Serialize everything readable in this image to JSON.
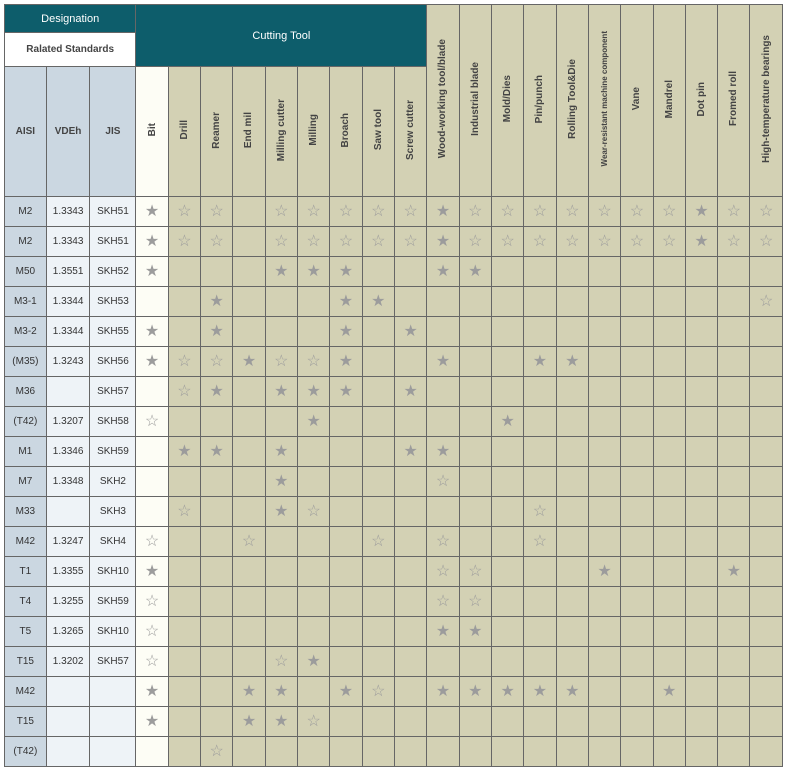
{
  "headers": {
    "designation": "Designation",
    "cutting_tool": "Cutting Tool",
    "related_standards": "Ralated Standards",
    "std_cols": [
      "AISI",
      "VDEh",
      "JIS"
    ],
    "app_cols": [
      "Bit",
      "Drill",
      "Reamer",
      "End mil",
      "Milling cutter",
      "Milling",
      "Broach",
      "Saw tool",
      "Screw cutter",
      "Wood-working tool/blade",
      "Industrial blade",
      "Mold/Dies",
      "Pin/punch",
      "Rolling Tool&Die",
      "Wear-resistant machine component",
      "Vane",
      "Mandrel",
      "Dot pin",
      "Fromed roll",
      "High-temperature bearings"
    ],
    "olive_cols": [
      false,
      true,
      true,
      true,
      true,
      true,
      true,
      true,
      true,
      true,
      true,
      true,
      true,
      true,
      true,
      true,
      true,
      true,
      true,
      true
    ]
  },
  "symbols": {
    "filled": "★",
    "outline": "☆",
    "none": ""
  },
  "rows": [
    {
      "aisi": "M2",
      "vdeh": "1.3343",
      "jis": "SKH51",
      "cells": [
        "f",
        "o",
        "o",
        "",
        "o",
        "o",
        "o",
        "o",
        "o",
        "f",
        "o",
        "o",
        "o",
        "o",
        "o",
        "o",
        "o",
        "f",
        "o",
        "o"
      ]
    },
    {
      "aisi": "M2",
      "vdeh": "1.3343",
      "jis": "SKH51",
      "cells": [
        "f",
        "o",
        "o",
        "",
        "o",
        "o",
        "o",
        "o",
        "o",
        "f",
        "o",
        "o",
        "o",
        "o",
        "o",
        "o",
        "o",
        "f",
        "o",
        "o"
      ]
    },
    {
      "aisi": "M50",
      "vdeh": "1.3551",
      "jis": "SKH52",
      "cells": [
        "f",
        "",
        "",
        "",
        "f",
        "f",
        "f",
        "",
        "",
        "f",
        "f",
        "",
        "",
        "",
        "",
        "",
        "",
        "",
        "",
        ""
      ]
    },
    {
      "aisi": "M3-1",
      "vdeh": "1.3344",
      "jis": "SKH53",
      "cells": [
        "",
        "",
        "f",
        "",
        "",
        "",
        "f",
        "f",
        "",
        "",
        "",
        "",
        "",
        "",
        "",
        "",
        "",
        "",
        "",
        "o"
      ]
    },
    {
      "aisi": "M3-2",
      "vdeh": "1.3344",
      "jis": "SKH55",
      "cells": [
        "f",
        "",
        "f",
        "",
        "",
        "",
        "f",
        "",
        "f",
        "",
        "",
        "",
        "",
        "",
        "",
        "",
        "",
        "",
        "",
        ""
      ]
    },
    {
      "aisi": "(M35)",
      "vdeh": "1.3243",
      "jis": "SKH56",
      "cells": [
        "f",
        "o",
        "o",
        "f",
        "o",
        "o",
        "f",
        "",
        "",
        "f",
        "",
        "",
        "f",
        "f",
        "",
        "",
        "",
        "",
        "",
        ""
      ]
    },
    {
      "aisi": "M36",
      "vdeh": "",
      "jis": "SKH57",
      "cells": [
        "",
        "o",
        "f",
        "",
        "f",
        "f",
        "f",
        "",
        "f",
        "",
        "",
        "",
        "",
        "",
        "",
        "",
        "",
        "",
        "",
        ""
      ]
    },
    {
      "aisi": "(T42)",
      "vdeh": "1.3207",
      "jis": "SKH58",
      "cells": [
        "o",
        "",
        "",
        "",
        "",
        "f",
        "",
        "",
        "",
        "",
        "",
        "f",
        "",
        "",
        "",
        "",
        "",
        "",
        "",
        ""
      ]
    },
    {
      "aisi": "M1",
      "vdeh": "1.3346",
      "jis": "SKH59",
      "cells": [
        "",
        "f",
        "f",
        "",
        "f",
        "",
        "",
        "",
        "f",
        "f",
        "",
        "",
        "",
        "",
        "",
        "",
        "",
        "",
        "",
        ""
      ]
    },
    {
      "aisi": "M7",
      "vdeh": "1.3348",
      "jis": "SKH2",
      "cells": [
        "",
        "",
        "",
        "",
        "f",
        "",
        "",
        "",
        "",
        "o",
        "",
        "",
        "",
        "",
        "",
        "",
        "",
        "",
        "",
        ""
      ]
    },
    {
      "aisi": "M33",
      "vdeh": "",
      "jis": "SKH3",
      "cells": [
        "",
        "o",
        "",
        "",
        "f",
        "o",
        "",
        "",
        "",
        "",
        "",
        "",
        "o",
        "",
        "",
        "",
        "",
        "",
        "",
        ""
      ]
    },
    {
      "aisi": "M42",
      "vdeh": "1.3247",
      "jis": "SKH4",
      "cells": [
        "o",
        "",
        "",
        "o",
        "",
        "",
        "",
        "o",
        "",
        "o",
        "",
        "",
        "o",
        "",
        "",
        "",
        "",
        "",
        "",
        ""
      ]
    },
    {
      "aisi": "T1",
      "vdeh": "1.3355",
      "jis": "SKH10",
      "cells": [
        "f",
        "",
        "",
        "",
        "",
        "",
        "",
        "",
        "",
        "o",
        "o",
        "",
        "",
        "",
        "f",
        "",
        "",
        "",
        "f",
        ""
      ]
    },
    {
      "aisi": "T4",
      "vdeh": "1.3255",
      "jis": "SKH59",
      "cells": [
        "o",
        "",
        "",
        "",
        "",
        "",
        "",
        "",
        "",
        "o",
        "o",
        "",
        "",
        "",
        "",
        "",
        "",
        "",
        "",
        ""
      ]
    },
    {
      "aisi": "T5",
      "vdeh": "1.3265",
      "jis": "SKH10",
      "cells": [
        "o",
        "",
        "",
        "",
        "",
        "",
        "",
        "",
        "",
        "f",
        "f",
        "",
        "",
        "",
        "",
        "",
        "",
        "",
        "",
        ""
      ]
    },
    {
      "aisi": "T15",
      "vdeh": "1.3202",
      "jis": "SKH57",
      "cells": [
        "o",
        "",
        "",
        "",
        "o",
        "f",
        "",
        "",
        "",
        "",
        "",
        "",
        "",
        "",
        "",
        "",
        "",
        "",
        "",
        ""
      ]
    },
    {
      "aisi": "M42",
      "vdeh": "",
      "jis": "",
      "cells": [
        "f",
        "",
        "",
        "f",
        "f",
        "",
        "f",
        "o",
        "",
        "f",
        "f",
        "f",
        "f",
        "f",
        "",
        "",
        "f",
        "",
        "",
        ""
      ]
    },
    {
      "aisi": "T15",
      "vdeh": "",
      "jis": "",
      "cells": [
        "f",
        "",
        "",
        "f",
        "f",
        "o",
        "",
        "",
        "",
        "",
        "",
        "",
        "",
        "",
        "",
        "",
        "",
        "",
        "",
        ""
      ]
    },
    {
      "aisi": "(T42)",
      "vdeh": "",
      "jis": "",
      "cells": [
        "",
        "",
        "o",
        "",
        "",
        "",
        "",
        "",
        "",
        "",
        "",
        "",
        "",
        "",
        "",
        "",
        "",
        "",
        "",
        ""
      ]
    }
  ]
}
